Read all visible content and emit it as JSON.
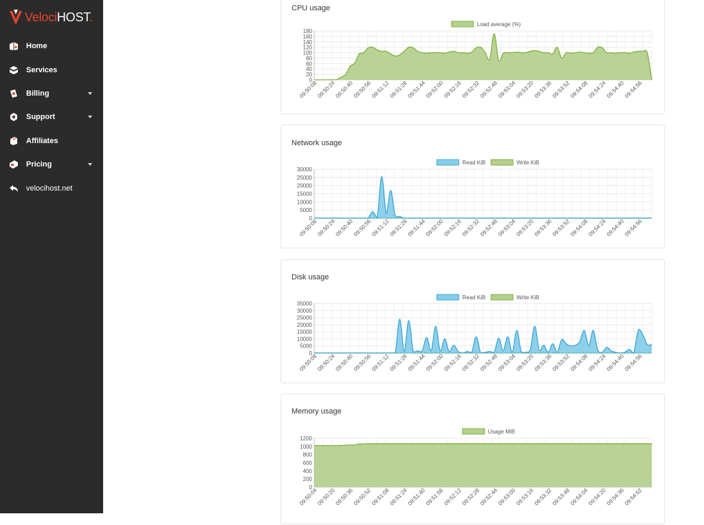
{
  "brand": {
    "name_a": "Veloci",
    "name_b": "HOST",
    "dot": "."
  },
  "sidebar": {
    "items": [
      {
        "label": "Home",
        "icon": "home-icon",
        "dropdown": false
      },
      {
        "label": "Services",
        "icon": "cube-icon",
        "dropdown": false
      },
      {
        "label": "Billing",
        "icon": "billing-icon",
        "dropdown": true
      },
      {
        "label": "Support",
        "icon": "support-icon",
        "dropdown": true
      },
      {
        "label": "Affiliates",
        "icon": "affiliates-icon",
        "dropdown": false
      },
      {
        "label": "Pricing",
        "icon": "pricing-icon",
        "dropdown": true
      },
      {
        "label": "velocihost.net",
        "icon": "back-arrow-icon",
        "dropdown": false
      }
    ]
  },
  "colors": {
    "green_fill": "#b5d08f",
    "green_line": "#7fb13e",
    "blue_fill": "#88cde9",
    "blue_line": "#3aa5d6",
    "accent": "#e8442f"
  },
  "panels": [
    {
      "title": "CPU usage"
    },
    {
      "title": "Network usage"
    },
    {
      "title": "Disk usage"
    },
    {
      "title": "Memory usage"
    }
  ],
  "chart_data": [
    {
      "type": "area",
      "title": "CPU usage",
      "ylim": [
        0,
        180
      ],
      "yticks": [
        0,
        20,
        40,
        60,
        80,
        100,
        120,
        140,
        160,
        180
      ],
      "x_tick_labels": [
        "09:50:08",
        "09:50:24",
        "09:50:40",
        "09:50:56",
        "09:51:12",
        "09:51:28",
        "09:51:44",
        "09:52:00",
        "09:52:16",
        "09:52:32",
        "09:52:48",
        "09:53:04",
        "09:53:20",
        "09:53:36",
        "09:53:52",
        "09:54:08",
        "09:54:24",
        "09:54:40",
        "09:54:56"
      ],
      "series": [
        {
          "name": "Load average (%)",
          "color": "green",
          "values": [
            0,
            0,
            0,
            0,
            0,
            1,
            10,
            20,
            50,
            62,
            95,
            100,
            118,
            120,
            110,
            105,
            105,
            95,
            88,
            92,
            105,
            120,
            118,
            105,
            100,
            98,
            100,
            100,
            100,
            98,
            102,
            105,
            100,
            100,
            98,
            102,
            118,
            120,
            100,
            75,
            170,
            70,
            98,
            100,
            100,
            102,
            100,
            100,
            105,
            108,
            105,
            100,
            100,
            95,
            120,
            80,
            100,
            98,
            100,
            102,
            100,
            98,
            100,
            120,
            118,
            100,
            100,
            98,
            100,
            100,
            98,
            102,
            105,
            105,
            100,
            0
          ]
        }
      ],
      "grid": true,
      "legend": "top-center"
    },
    {
      "type": "area",
      "title": "Network usage",
      "ylim": [
        0,
        30000
      ],
      "yticks": [
        0,
        5000,
        10000,
        15000,
        20000,
        25000,
        30000
      ],
      "x_tick_labels": [
        "09:50:08",
        "09:50:24",
        "09:50:40",
        "09:50:56",
        "09:51:12",
        "09:51:28",
        "09:51:44",
        "09:52:00",
        "09:52:16",
        "09:52:32",
        "09:52:48",
        "09:53:04",
        "09:53:20",
        "09:53:36",
        "09:53:52",
        "09:54:08",
        "09:54:24",
        "09:54:40",
        "09:54:56"
      ],
      "series": [
        {
          "name": "Read KiB",
          "color": "blue",
          "values": [
            0,
            0,
            0,
            0,
            0,
            0,
            0,
            0,
            0,
            0,
            0,
            0,
            0,
            4000,
            500,
            25500,
            3000,
            17000,
            1500,
            1000,
            0,
            0,
            0,
            0,
            0,
            0,
            0,
            0,
            0,
            0,
            0,
            0,
            0,
            0,
            0,
            0,
            0,
            0,
            0,
            0,
            0,
            0,
            0,
            0,
            0,
            0,
            0,
            0,
            0,
            0,
            0,
            0,
            0,
            0,
            0,
            0,
            0,
            0,
            0,
            0,
            0,
            0,
            0,
            0,
            0,
            0,
            0,
            0,
            0,
            0,
            0,
            0,
            0,
            0,
            0,
            0
          ]
        },
        {
          "name": "Write KiB",
          "color": "green",
          "values": [
            0,
            0,
            0,
            0,
            0,
            0,
            0,
            0,
            0,
            0,
            0,
            0,
            0,
            0,
            0,
            0,
            0,
            0,
            0,
            0,
            0,
            0,
            0,
            0,
            0,
            0,
            0,
            0,
            0,
            0,
            0,
            0,
            0,
            0,
            0,
            0,
            0,
            0,
            0,
            0,
            0,
            0,
            0,
            0,
            0,
            0,
            0,
            0,
            0,
            0,
            0,
            0,
            0,
            0,
            0,
            0,
            0,
            0,
            0,
            0,
            0,
            0,
            0,
            0,
            0,
            0,
            0,
            0,
            0,
            0,
            0,
            0,
            0,
            0,
            0,
            0
          ]
        }
      ],
      "grid": true,
      "legend": "top-center"
    },
    {
      "type": "area",
      "title": "Disk usage",
      "ylim": [
        0,
        35000
      ],
      "yticks": [
        0,
        5000,
        10000,
        15000,
        20000,
        25000,
        30000,
        35000
      ],
      "x_tick_labels": [
        "09:50:08",
        "09:50:24",
        "09:50:40",
        "09:50:56",
        "09:51:12",
        "09:51:28",
        "09:51:44",
        "09:52:00",
        "09:52:16",
        "09:52:32",
        "09:52:48",
        "09:53:04",
        "09:53:20",
        "09:53:36",
        "09:53:52",
        "09:54:08",
        "09:54:24",
        "09:54:40",
        "09:54:56"
      ],
      "series": [
        {
          "name": "Read KiB",
          "color": "blue",
          "values": [
            0,
            0,
            0,
            0,
            0,
            0,
            0,
            0,
            0,
            0,
            0,
            0,
            0,
            0,
            0,
            0,
            0,
            0,
            0,
            24000,
            1000,
            23000,
            1500,
            1500,
            1500,
            11000,
            1500,
            19000,
            1500,
            10000,
            1000,
            5500,
            1000,
            0,
            1000,
            500,
            11500,
            0,
            500,
            1000,
            500,
            10500,
            1500,
            11500,
            500,
            16000,
            1000,
            500,
            2000,
            19000,
            2000,
            5500,
            500,
            6500,
            500,
            9500,
            6500,
            5000,
            5500,
            8000,
            16000,
            5000,
            16000,
            2000,
            500,
            4000,
            1500,
            500,
            0,
            500,
            2500,
            0,
            16000,
            13000,
            6000,
            6000
          ]
        },
        {
          "name": "Write KiB",
          "color": "green",
          "values": [
            0,
            0,
            0,
            0,
            0,
            0,
            0,
            0,
            0,
            0,
            0,
            0,
            0,
            0,
            0,
            0,
            0,
            0,
            0,
            0,
            0,
            0,
            0,
            0,
            0,
            0,
            0,
            0,
            0,
            0,
            0,
            0,
            0,
            0,
            0,
            0,
            0,
            0,
            0,
            0,
            0,
            0,
            0,
            0,
            0,
            0,
            0,
            0,
            0,
            0,
            0,
            0,
            0,
            0,
            0,
            0,
            0,
            0,
            0,
            0,
            0,
            0,
            0,
            0,
            0,
            0,
            0,
            0,
            0,
            0,
            0,
            0,
            0,
            0,
            0,
            0
          ]
        }
      ],
      "grid": true,
      "legend": "top-center"
    },
    {
      "type": "area",
      "title": "Memory usage",
      "ylim": [
        0,
        1200
      ],
      "yticks": [
        0,
        200,
        400,
        600,
        800,
        1000,
        1200
      ],
      "x_tick_labels": [
        "09:50:04",
        "09:50:20",
        "09:50:36",
        "09:50:52",
        "09:51:08",
        "09:51:24",
        "09:51:40",
        "09:51:56",
        "09:52:12",
        "09:52:28",
        "09:52:44",
        "09:53:00",
        "09:53:16",
        "09:53:32",
        "09:53:48",
        "09:54:04",
        "09:54:20",
        "09:54:36",
        "09:54:52"
      ],
      "series": [
        {
          "name": "Usage MiB",
          "color": "green",
          "values": [
            1020,
            1020,
            1020,
            1020,
            1022,
            1022,
            1025,
            1030,
            1035,
            1040,
            1060,
            1065,
            1068,
            1068,
            1068,
            1068,
            1068,
            1068,
            1068,
            1068,
            1068,
            1068,
            1068,
            1068,
            1068,
            1068,
            1068,
            1068,
            1068,
            1068,
            1068,
            1068,
            1068,
            1068,
            1068,
            1068,
            1068,
            1068,
            1068,
            1068,
            1068,
            1068,
            1068,
            1068,
            1068,
            1068,
            1068,
            1068,
            1068,
            1068,
            1068,
            1068,
            1068,
            1068,
            1068,
            1068,
            1068,
            1068,
            1068,
            1068,
            1068,
            1068,
            1068,
            1068,
            1068,
            1068,
            1068,
            1068,
            1068,
            1068,
            1068,
            1068,
            1068,
            1068,
            1068,
            1068
          ]
        }
      ],
      "grid": true,
      "legend": "top-center"
    }
  ]
}
